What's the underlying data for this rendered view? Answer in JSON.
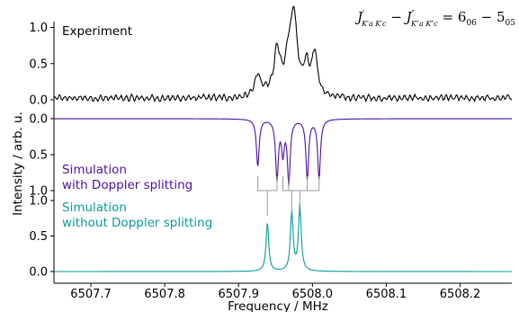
{
  "chart_data": {
    "type": "line",
    "title": "",
    "xlabel": "Frequency / MHz",
    "ylabel": "Intensity / arb. u.",
    "xlim": [
      6507.65,
      6508.27
    ],
    "x_ticks": [
      "6507.7",
      "6507.8",
      "6507.9",
      "6508.0",
      "6508.1",
      "6508.2"
    ],
    "transition_label": {
      "lhs_main": "J",
      "lhs_sup": "′",
      "lhs_sub": "K′a K′c",
      "dash": " − ",
      "rhs_main": "J",
      "rhs_sup": "″",
      "rhs_sub": "K″a K″c",
      "eq": " = 6",
      "sub1": "06",
      "mid": " − 5",
      "sub2": "05"
    },
    "panels": [
      {
        "name": "Experiment",
        "label": "Experiment",
        "color": "#000000",
        "orientation": "up",
        "ylim": [
          0.0,
          1.05
        ],
        "y_ticks": [
          "0.0",
          "0.5",
          "1.0"
        ],
        "peaks": [
          {
            "x": 6507.926,
            "h": 0.32
          },
          {
            "x": 6507.952,
            "h": 0.55
          },
          {
            "x": 6507.968,
            "h": 0.42
          },
          {
            "x": 6507.975,
            "h": 0.97
          },
          {
            "x": 6507.992,
            "h": 0.35
          },
          {
            "x": 6508.003,
            "h": 0.58
          }
        ],
        "noise_level": 0.06
      },
      {
        "name": "Simulation with Doppler splitting",
        "label_lines": [
          "Simulation",
          "with Doppler splitting"
        ],
        "color": "#4b0fa3",
        "orientation": "down",
        "ylim": [
          0.0,
          1.05
        ],
        "y_ticks": [
          "0.0",
          "0.5",
          "1.0"
        ],
        "peaks": [
          {
            "x": 6507.926,
            "h": 0.66
          },
          {
            "x": 6507.952,
            "h": 0.82
          },
          {
            "x": 6507.96,
            "h": 0.45
          },
          {
            "x": 6507.968,
            "h": 0.88
          },
          {
            "x": 6507.993,
            "h": 0.83
          },
          {
            "x": 6508.009,
            "h": 0.83
          }
        ]
      },
      {
        "name": "Simulation without Doppler splitting",
        "label_lines": [
          "Simulation",
          "without Doppler splitting"
        ],
        "color": "#0a9a9a",
        "orientation": "up",
        "ylim": [
          0.0,
          1.05
        ],
        "y_ticks": [
          "0.0",
          "0.5",
          "1.0"
        ],
        "peaks": [
          {
            "x": 6507.939,
            "h": 0.68
          },
          {
            "x": 6507.972,
            "h": 0.83
          },
          {
            "x": 6507.983,
            "h": 0.93
          }
        ]
      }
    ],
    "doppler_connectors": [
      {
        "from": [
          6507.926,
          6507.952
        ],
        "to": 6507.939
      },
      {
        "from": [
          6507.96,
          6507.993
        ],
        "to": 6507.972
      },
      {
        "from": [
          6507.968,
          6508.009
        ],
        "to": 6507.983
      }
    ],
    "connector_color": "#999999",
    "grid": false
  }
}
